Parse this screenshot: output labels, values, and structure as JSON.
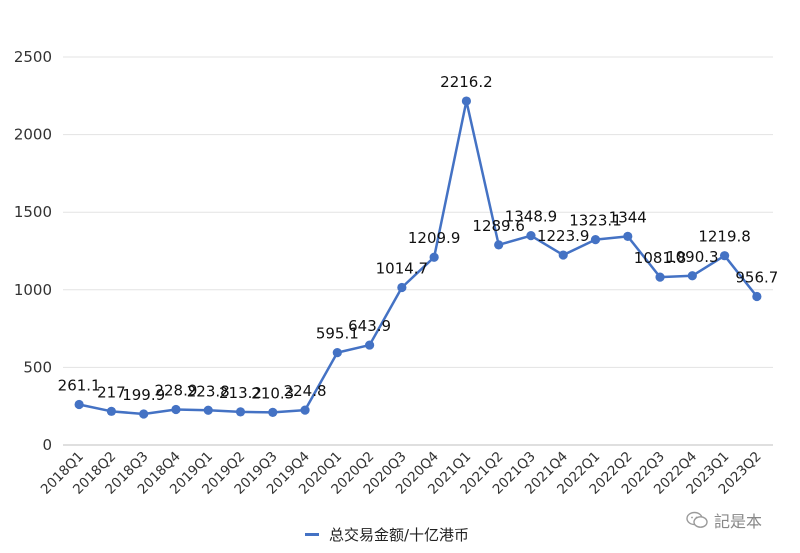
{
  "chart_data": {
    "type": "line",
    "categories": [
      "2018Q1",
      "2018Q2",
      "2018Q3",
      "2018Q4",
      "2019Q1",
      "2019Q2",
      "2019Q3",
      "2019Q4",
      "2020Q1",
      "2020Q2",
      "2020Q3",
      "2020Q4",
      "2021Q1",
      "2021Q2",
      "2021Q3",
      "2021Q4",
      "2022Q1",
      "2022Q2",
      "2022Q3",
      "2022Q4",
      "2023Q1",
      "2023Q2"
    ],
    "series": [
      {
        "name": "总交易金额/十亿港币",
        "values": [
          261.1,
          217,
          199.9,
          228.9,
          223.8,
          213.2,
          210.3,
          224.8,
          595.1,
          643.9,
          1014.7,
          1209.9,
          2216.2,
          1289.6,
          1348.9,
          1223.9,
          1323.1,
          1344,
          1081.8,
          1090.3,
          1219.8,
          956.7
        ],
        "labels": [
          "261.1",
          "217",
          "199.9",
          "228.9",
          "223.8",
          "213.2",
          "210.3",
          "224.8",
          "595.1",
          "643.9",
          "1014.7",
          "1209.9",
          "2216.2",
          "1289.6",
          "1348.9",
          "1223.9",
          "1323.1",
          "1344",
          "1081.8",
          "1090.3",
          "1219.8",
          "956.7"
        ],
        "color": "#4472c4"
      }
    ],
    "yticks": [
      "0",
      "500",
      "1000",
      "1500",
      "2000",
      "2500"
    ],
    "ylim": [
      0,
      2500
    ],
    "grid": true,
    "legend_position": "bottom"
  },
  "legend": {
    "label": "总交易金额/十亿港币"
  },
  "watermark": {
    "text": "記是本"
  }
}
